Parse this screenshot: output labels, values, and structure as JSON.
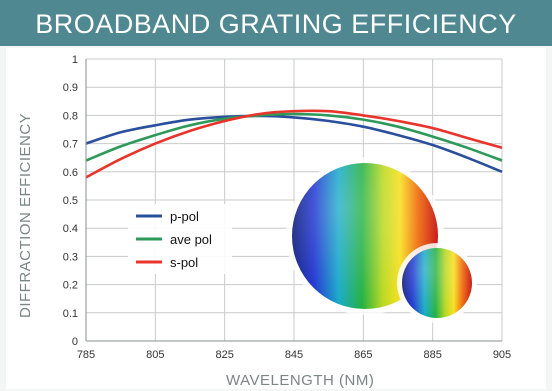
{
  "header": {
    "title": "BROADBAND GRATING EFFICIENCY"
  },
  "chart_data": {
    "type": "line",
    "title": "BROADBAND GRATING EFFICIENCY",
    "xlabel": "WAVELENGTH (NM)",
    "ylabel": "DIFFRACTION EFFICIENCY",
    "xlim": [
      785,
      905
    ],
    "ylim": [
      0,
      1
    ],
    "x_ticks": [
      "785",
      "805",
      "825",
      "845",
      "865",
      "885",
      "905"
    ],
    "y_ticks": [
      "0",
      "0.1",
      "0.2",
      "0.3",
      "0.4",
      "0.5",
      "0.6",
      "0.7",
      "0.8",
      "0.9",
      "1"
    ],
    "grid": true,
    "legend_position": "center-left",
    "x": [
      785,
      795,
      805,
      815,
      825,
      835,
      845,
      855,
      865,
      875,
      885,
      895,
      905
    ],
    "series": [
      {
        "name": "p-pol",
        "color": "#2a4f9c",
        "values": [
          0.7,
          0.74,
          0.765,
          0.785,
          0.795,
          0.798,
          0.793,
          0.78,
          0.76,
          0.73,
          0.695,
          0.65,
          0.6
        ]
      },
      {
        "name": "ave pol",
        "color": "#2e9a5a",
        "values": [
          0.64,
          0.69,
          0.73,
          0.765,
          0.788,
          0.8,
          0.805,
          0.8,
          0.785,
          0.76,
          0.725,
          0.685,
          0.64
        ]
      },
      {
        "name": "s-pol",
        "color": "#e8342a",
        "values": [
          0.58,
          0.645,
          0.7,
          0.745,
          0.78,
          0.805,
          0.815,
          0.815,
          0.8,
          0.78,
          0.755,
          0.72,
          0.685
        ]
      }
    ]
  }
}
